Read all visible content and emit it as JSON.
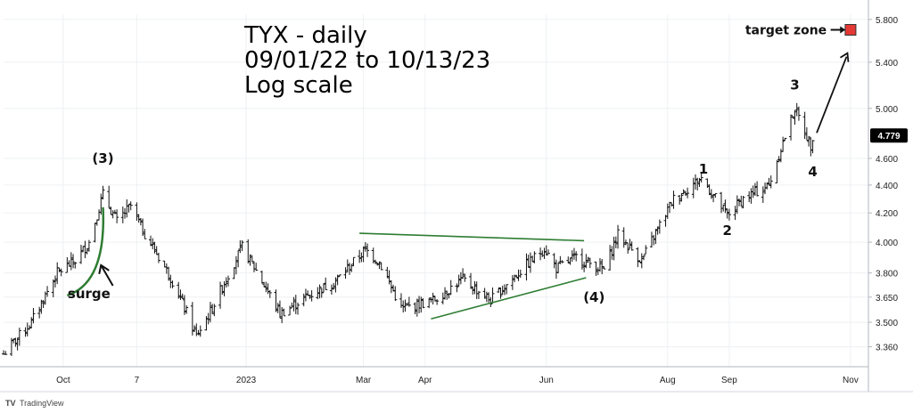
{
  "chart_data": {
    "type": "ohlc",
    "scale": "log",
    "title_lines": [
      "TYX - daily",
      "09/01/22 to 10/13/23",
      "Log scale"
    ],
    "ylim": [
      3.25,
      5.85
    ],
    "y_ticks": [
      "5.800",
      "5.400",
      "5.000",
      "4.600",
      "4.400",
      "4.200",
      "4.000",
      "3.800",
      "3.650",
      "3.500",
      "3.360"
    ],
    "x_ticks": [
      "Oct",
      "7",
      "2023",
      "Mar",
      "Apr",
      "Jun",
      "Aug",
      "Sep",
      "Nov"
    ],
    "x_range": [
      "2022-09-01",
      "2023-11-10"
    ],
    "last_price": "4.779",
    "series": [
      {
        "values": [
          [
            "2022-09-01",
            3.32
          ],
          [
            "2022-09-15",
            3.5
          ],
          [
            "2022-09-28",
            3.8
          ],
          [
            "2022-10-07",
            3.88
          ],
          [
            "2022-10-14",
            4.0
          ],
          [
            "2022-10-21",
            4.33
          ],
          [
            "2022-10-28",
            4.14
          ],
          [
            "2022-11-04",
            4.25
          ],
          [
            "2022-11-10",
            4.08
          ],
          [
            "2022-11-25",
            3.75
          ],
          [
            "2022-12-07",
            3.42
          ],
          [
            "2022-12-14",
            3.56
          ],
          [
            "2022-12-30",
            3.97
          ],
          [
            "2023-01-18",
            3.55
          ],
          [
            "2023-01-31",
            3.65
          ],
          [
            "2023-02-15",
            3.75
          ],
          [
            "2023-03-02",
            3.95
          ],
          [
            "2023-03-09",
            3.87
          ],
          [
            "2023-03-20",
            3.58
          ],
          [
            "2023-04-05",
            3.63
          ],
          [
            "2023-04-20",
            3.76
          ],
          [
            "2023-05-04",
            3.63
          ],
          [
            "2023-05-31",
            3.96
          ],
          [
            "2023-06-06",
            3.83
          ],
          [
            "2023-06-16",
            3.9
          ],
          [
            "2023-06-30",
            3.82
          ],
          [
            "2023-07-07",
            4.05
          ],
          [
            "2023-07-19",
            3.88
          ],
          [
            "2023-08-04",
            4.3
          ],
          [
            "2023-08-18",
            4.45
          ],
          [
            "2023-08-31",
            4.18
          ],
          [
            "2023-09-08",
            4.3
          ],
          [
            "2023-09-21",
            4.4
          ],
          [
            "2023-10-04",
            5.0
          ],
          [
            "2023-10-12",
            4.7
          ],
          [
            "2023-10-13",
            4.78
          ]
        ]
      }
    ],
    "trendlines": [
      {
        "from": [
          "2023-02-27",
          4.06
        ],
        "to": [
          "2023-06-20",
          4.01
        ]
      },
      {
        "from": [
          "2023-04-04",
          3.52
        ],
        "to": [
          "2023-06-21",
          3.77
        ]
      }
    ],
    "annotations": [
      {
        "text": "(3)",
        "at": [
          "2022-10-21",
          4.6
        ]
      },
      {
        "text": "surge",
        "at": [
          "2022-10-14",
          3.67
        ]
      },
      {
        "text": "1",
        "at": [
          "2023-08-19",
          4.52
        ]
      },
      {
        "text": "2",
        "at": [
          "2023-08-31",
          4.08
        ]
      },
      {
        "text": "3",
        "at": [
          "2023-10-04",
          5.2
        ]
      },
      {
        "text": "4",
        "at": [
          "2023-10-13",
          4.5
        ]
      },
      {
        "text": "(4)",
        "at": [
          "2023-06-25",
          3.65
        ]
      },
      {
        "text": "target zone",
        "at": [
          "2023-10-20",
          5.7
        ]
      }
    ],
    "colors": {
      "bars": "#111111",
      "trendline": "#2e7d32",
      "target": "#e53935",
      "badge": "#000000",
      "arrow": "#111111"
    }
  },
  "brand": {
    "label": "TradingView"
  }
}
